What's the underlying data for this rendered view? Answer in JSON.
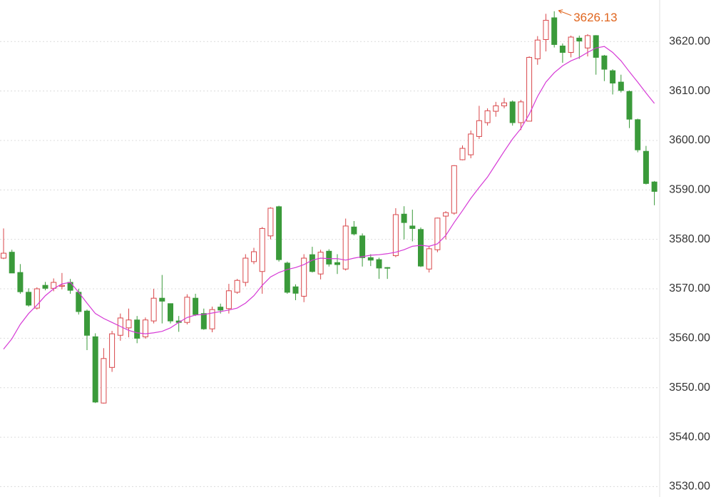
{
  "chart_data": {
    "type": "candlestick",
    "up_color": "#d9464a",
    "down_color": "#3a9a3a",
    "grid": true,
    "open": [
      3576.2,
      3577.4,
      3573.3,
      3569.3,
      3566.1,
      3570.7,
      3570.1,
      3570.5,
      3571.3,
      3569.3,
      3565.5,
      3560.3,
      3546.9,
      3554.1,
      3560.6,
      3562.1,
      3563.7,
      3560.3,
      3563.5,
      3568.1,
      3567.0,
      3563.5,
      3563.2,
      3568.1,
      3565.0,
      3561.9,
      3566.3,
      3566.0,
      3569.3,
      3571.3,
      3575.5,
      3573.5,
      3580.7,
      3586.6,
      3575.2,
      3570.4,
      3568.5,
      3576.9,
      3573.0,
      3577.6,
      3575.3,
      3574.0,
      3582.5,
      3580.7,
      3576.3,
      3575.9,
      3574.3,
      3576.7,
      3585.1,
      3582.7,
      3582.0,
      3574.0,
      3577.9,
      3584.7,
      3585.3,
      3596.1,
      3597.1,
      3600.8,
      3603.6,
      3605.9,
      3607.0,
      3607.8,
      3603.6,
      3603.9,
      3616.5,
      3620.4,
      3624.8,
      3619.1,
      3617.8,
      3620.7,
      3618.7,
      3621.2,
      3617.1,
      3614.1,
      3611.8,
      3609.9,
      3604.2,
      3597.8,
      3591.6
    ],
    "high": [
      3582.2,
      3577.9,
      3575.0,
      3570.1,
      3570.3,
      3571.4,
      3572.1,
      3573.2,
      3572.0,
      3570.0,
      3565.8,
      3561.0,
      3558.0,
      3561.5,
      3565.0,
      3566.0,
      3564.5,
      3564.2,
      3570.0,
      3572.8,
      3567.0,
      3564.5,
      3568.9,
      3569.0,
      3566.0,
      3566.4,
      3567.0,
      3571.0,
      3572.0,
      3577.0,
      3578.3,
      3582.5,
      3586.5,
      3586.8,
      3575.5,
      3570.9,
      3577.0,
      3578.5,
      3577.9,
      3578.0,
      3577.0,
      3584.2,
      3583.7,
      3581.2,
      3577.0,
      3576.3,
      3574.4,
      3586.3,
      3586.7,
      3586.0,
      3582.4,
      3578.6,
      3584.4,
      3585.7,
      3595.0,
      3599.0,
      3602.0,
      3607.0,
      3606.5,
      3607.8,
      3608.6,
      3608.1,
      3608.2,
      3617.0,
      3621.1,
      3625.6,
      3626.13,
      3619.6,
      3621.2,
      3621.2,
      3621.5,
      3621.3,
      3617.3,
      3614.4,
      3613.3,
      3610.1,
      3604.4,
      3598.9,
      3591.8
    ],
    "low": [
      3576.0,
      3573.2,
      3569.0,
      3566.4,
      3565.8,
      3569.7,
      3569.5,
      3569.9,
      3569.0,
      3564.8,
      3557.6,
      3546.9,
      3546.8,
      3553.2,
      3559.5,
      3560.2,
      3559.0,
      3559.9,
      3563.0,
      3563.0,
      3563.0,
      3561.3,
      3562.8,
      3564.5,
      3561.7,
      3561.2,
      3565.0,
      3565.0,
      3569.0,
      3570.5,
      3575.0,
      3569.0,
      3580.0,
      3575.5,
      3569.0,
      3567.7,
      3567.3,
      3573.3,
      3571.9,
      3574.5,
      3573.0,
      3573.7,
      3580.8,
      3574.5,
      3574.6,
      3572.0,
      3572.0,
      3576.4,
      3580.0,
      3579.6,
      3574.4,
      3573.3,
      3577.4,
      3580.0,
      3585.0,
      3596.0,
      3596.4,
      3600.3,
      3603.0,
      3604.8,
      3606.5,
      3603.0,
      3602.1,
      3604.0,
      3615.3,
      3618.0,
      3618.8,
      3615.7,
      3616.8,
      3616.5,
      3617.0,
      3613.3,
      3612.0,
      3609.3,
      3609.7,
      3602.5,
      3597.6,
      3591.1,
      3586.9
    ],
    "close": [
      3577.2,
      3573.2,
      3569.4,
      3566.7,
      3570.0,
      3570.1,
      3571.3,
      3570.7,
      3569.7,
      3565.4,
      3560.6,
      3547.1,
      3555.9,
      3560.9,
      3564.1,
      3563.7,
      3560.0,
      3563.7,
      3568.1,
      3567.5,
      3563.5,
      3563.2,
      3568.3,
      3564.8,
      3561.9,
      3565.8,
      3565.7,
      3569.6,
      3571.7,
      3576.2,
      3577.5,
      3582.2,
      3586.3,
      3575.9,
      3569.3,
      3569.1,
      3576.2,
      3573.5,
      3577.4,
      3575.0,
      3574.9,
      3582.7,
      3581.1,
      3576.3,
      3575.8,
      3574.2,
      3574.2,
      3585.0,
      3583.4,
      3582.2,
      3574.6,
      3578.1,
      3584.3,
      3585.4,
      3594.9,
      3598.4,
      3601.3,
      3604.0,
      3606.0,
      3607.0,
      3607.6,
      3603.6,
      3607.8,
      3616.8,
      3620.3,
      3624.3,
      3619.4,
      3617.8,
      3620.9,
      3620.1,
      3621.2,
      3616.8,
      3614.4,
      3611.6,
      3610.1,
      3604.3,
      3598.1,
      3591.3,
      3589.7
    ],
    "ma": {
      "color": "#d63ad6",
      "values": [
        3557.8,
        3559.9,
        3562.8,
        3565.0,
        3566.7,
        3568.6,
        3570.0,
        3571.0,
        3571.3,
        3569.3,
        3567.1,
        3565.0,
        3564.0,
        3563.2,
        3562.4,
        3561.6,
        3561.1,
        3560.9,
        3561.1,
        3561.4,
        3562.1,
        3563.2,
        3564.2,
        3564.7,
        3564.8,
        3565.1,
        3565.4,
        3565.7,
        3566.1,
        3567.1,
        3568.6,
        3570.7,
        3572.4,
        3573.3,
        3573.9,
        3574.3,
        3574.9,
        3575.8,
        3576.2,
        3576.1,
        3576.1,
        3575.8,
        3576.2,
        3576.5,
        3576.8,
        3576.9,
        3577.1,
        3577.4,
        3577.9,
        3578.6,
        3578.8,
        3578.6,
        3579.1,
        3580.8,
        3583.4,
        3585.8,
        3588.3,
        3590.5,
        3592.6,
        3595.2,
        3597.8,
        3600.3,
        3602.4,
        3605.3,
        3608.9,
        3611.8,
        3613.7,
        3615.1,
        3616.1,
        3616.8,
        3617.8,
        3618.7,
        3619.0,
        3617.8,
        3616.1,
        3613.9,
        3611.8,
        3609.6,
        3607.5
      ]
    },
    "annotation": {
      "index": 66,
      "color": "#e0651e"
    },
    "ylim": [
      3527.9,
      3628.4
    ],
    "yticks": [
      {
        "value": 3530,
        "label": "3530.00"
      },
      {
        "value": 3540,
        "label": "3540.00"
      },
      {
        "value": 3550,
        "label": "3550.00"
      },
      {
        "value": 3560,
        "label": "3560.00"
      },
      {
        "value": 3570,
        "label": "3570.00"
      },
      {
        "value": 3580,
        "label": "3580.00"
      },
      {
        "value": 3590,
        "label": "3590.00"
      },
      {
        "value": 3600,
        "label": "3600.00"
      },
      {
        "value": 3610,
        "label": "3610.00"
      },
      {
        "value": 3620,
        "label": "3620.00"
      }
    ]
  }
}
